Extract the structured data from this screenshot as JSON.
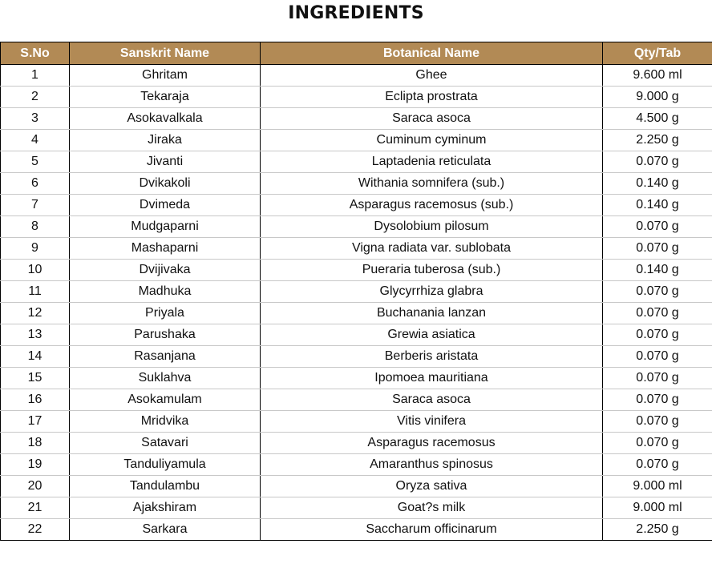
{
  "page": {
    "title": "INGREDIENTS"
  },
  "colors": {
    "header_background": "#b28a55",
    "header_text": "#ffffff",
    "border": "#000000"
  },
  "table": {
    "columns": [
      "S.No",
      "Sanskrit Name",
      "Botanical Name",
      "Qty/Tab"
    ],
    "rows": [
      [
        "1",
        "Ghritam",
        "Ghee",
        "9.600 ml"
      ],
      [
        "2",
        "Tekaraja",
        "Eclipta prostrata",
        "9.000 g"
      ],
      [
        "3",
        "Asokavalkala",
        "Saraca asoca",
        "4.500 g"
      ],
      [
        "4",
        "Jiraka",
        "Cuminum cyminum",
        "2.250 g"
      ],
      [
        "5",
        "Jivanti",
        "Laptadenia reticulata",
        "0.070 g"
      ],
      [
        "6",
        "Dvikakoli",
        "Withania somnifera (sub.)",
        "0.140 g"
      ],
      [
        "7",
        "Dvimeda",
        "Asparagus racemosus (sub.)",
        "0.140 g"
      ],
      [
        "8",
        "Mudgaparni",
        "Dysolobium pilosum",
        "0.070 g"
      ],
      [
        "9",
        "Mashaparni",
        "Vigna radiata var. sublobata",
        "0.070 g"
      ],
      [
        "10",
        "Dvijivaka",
        "Pueraria tuberosa (sub.)",
        "0.140 g"
      ],
      [
        "11",
        "Madhuka",
        "Glycyrrhiza glabra",
        "0.070 g"
      ],
      [
        "12",
        "Priyala",
        "Buchanania lanzan",
        "0.070 g"
      ],
      [
        "13",
        "Parushaka",
        "Grewia asiatica",
        "0.070 g"
      ],
      [
        "14",
        "Rasanjana",
        "Berberis aristata",
        "0.070 g"
      ],
      [
        "15",
        "Suklahva",
        "Ipomoea mauritiana",
        "0.070 g"
      ],
      [
        "16",
        "Asokamulam",
        "Saraca asoca",
        "0.070 g"
      ],
      [
        "17",
        "Mridvika",
        "Vitis vinifera",
        "0.070 g"
      ],
      [
        "18",
        "Satavari",
        "Asparagus racemosus",
        "0.070 g"
      ],
      [
        "19",
        "Tanduliyamula",
        "Amaranthus spinosus",
        "0.070 g"
      ],
      [
        "20",
        "Tandulambu",
        "Oryza sativa",
        "9.000 ml"
      ],
      [
        "21",
        "Ajakshiram",
        "Goat?s milk",
        "9.000 ml"
      ],
      [
        "22",
        "Sarkara",
        "Saccharum officinarum",
        "2.250 g"
      ]
    ]
  }
}
